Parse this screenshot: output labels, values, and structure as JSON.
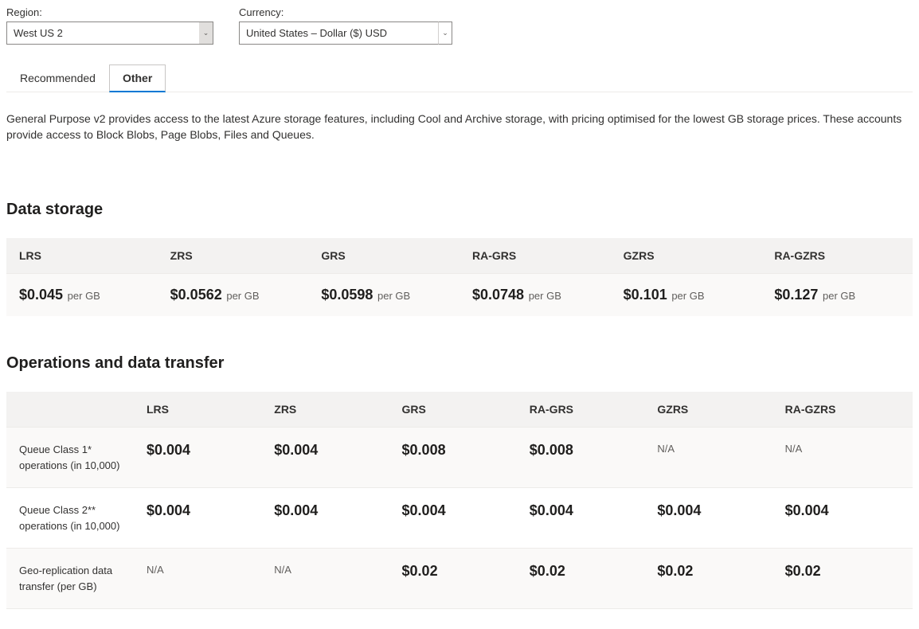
{
  "filters": {
    "region_label": "Region:",
    "region_value": "West US 2",
    "currency_label": "Currency:",
    "currency_value": "United States – Dollar ($) USD"
  },
  "tabs": {
    "recommended": "Recommended",
    "other": "Other",
    "active": "other"
  },
  "description": "General Purpose v2 provides access to the latest Azure storage features, including Cool and Archive storage, with pricing optimised for the lowest GB storage prices. These accounts provide access to Block Blobs, Page Blobs, Files and Queues.",
  "data_storage": {
    "title": "Data storage",
    "columns": [
      "LRS",
      "ZRS",
      "GRS",
      "RA-GRS",
      "GZRS",
      "RA-GZRS"
    ],
    "prices": [
      "$0.045",
      "$0.0562",
      "$0.0598",
      "$0.0748",
      "$0.101",
      "$0.127"
    ],
    "unit": "per GB"
  },
  "operations": {
    "title": "Operations and data transfer",
    "columns": [
      "",
      "LRS",
      "ZRS",
      "GRS",
      "RA-GRS",
      "GZRS",
      "RA-GZRS"
    ],
    "rows": [
      {
        "label": "Queue Class 1* operations (in 10,000)",
        "cells": [
          "$0.004",
          "$0.004",
          "$0.008",
          "$0.008",
          "N/A",
          "N/A"
        ]
      },
      {
        "label": "Queue Class 2** operations (in 10,000)",
        "cells": [
          "$0.004",
          "$0.004",
          "$0.004",
          "$0.004",
          "$0.004",
          "$0.004"
        ]
      },
      {
        "label": "Geo-replication data transfer (per GB)",
        "cells": [
          "N/A",
          "N/A",
          "$0.02",
          "$0.02",
          "$0.02",
          "$0.02"
        ]
      }
    ]
  },
  "styling": {
    "header_bg": "#f3f2f1",
    "row_alt_bg": "#faf9f8",
    "border_color": "#edebe9",
    "accent_color": "#0078d4",
    "price_fontsize": 18,
    "label_fontsize": 13
  }
}
